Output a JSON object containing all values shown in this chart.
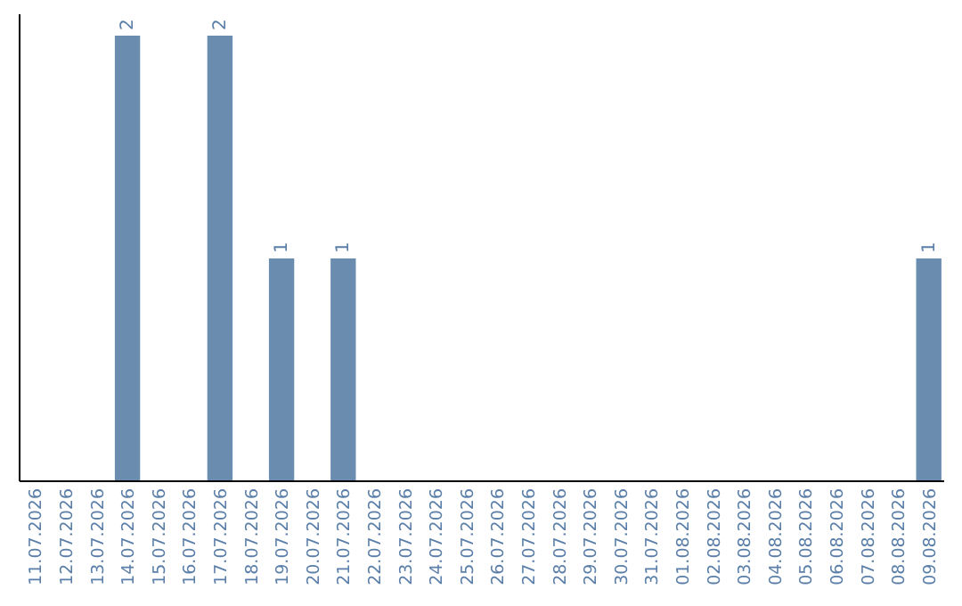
{
  "chart_data": {
    "type": "bar",
    "categories": [
      "11.07.2026",
      "12.07.2026",
      "13.07.2026",
      "14.07.2026",
      "15.07.2026",
      "16.07.2026",
      "17.07.2026",
      "18.07.2026",
      "19.07.2026",
      "20.07.2026",
      "21.07.2026",
      "22.07.2026",
      "23.07.2026",
      "24.07.2026",
      "25.07.2026",
      "26.07.2026",
      "27.07.2026",
      "28.07.2026",
      "29.07.2026",
      "30.07.2026",
      "31.07.2026",
      "01.08.2026",
      "02.08.2026",
      "03.08.2026",
      "04.08.2026",
      "05.08.2026",
      "06.08.2026",
      "07.08.2026",
      "08.08.2026",
      "09.08.2026"
    ],
    "values": [
      0,
      0,
      0,
      2,
      0,
      0,
      2,
      0,
      1,
      0,
      1,
      0,
      0,
      0,
      0,
      0,
      0,
      0,
      0,
      0,
      0,
      0,
      0,
      0,
      0,
      0,
      0,
      0,
      0,
      1
    ],
    "value_labels": [
      null,
      null,
      null,
      "2",
      null,
      null,
      "2",
      null,
      "1",
      null,
      "1",
      null,
      null,
      null,
      null,
      null,
      null,
      null,
      null,
      null,
      null,
      null,
      null,
      null,
      null,
      null,
      null,
      null,
      null,
      "1"
    ],
    "color": "#6a8caf",
    "ylim": [
      0,
      2
    ],
    "tick_labels": "x"
  }
}
